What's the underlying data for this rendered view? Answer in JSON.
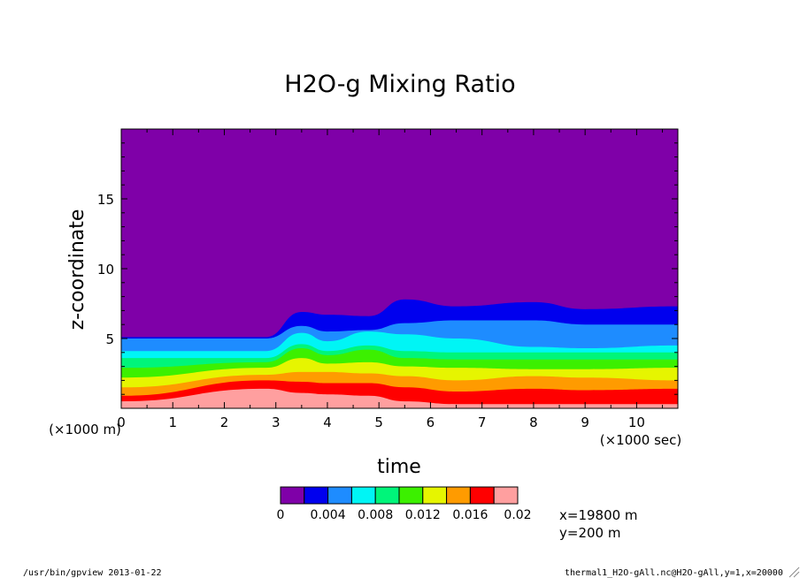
{
  "chart_data": {
    "type": "heatmap",
    "title": "H2O-g Mixing Ratio",
    "xlabel": "time",
    "ylabel": "z-coordinate",
    "x_scale_note": "(×1000 sec)",
    "y_scale_note": "(×1000 m)",
    "x_ticks": [
      0,
      1,
      2,
      3,
      4,
      5,
      6,
      7,
      8,
      9,
      10
    ],
    "y_ticks": [
      5,
      10,
      15
    ],
    "xlim": [
      0,
      10.8
    ],
    "ylim": [
      0,
      20
    ],
    "levels": [
      "0",
      "0.004",
      "0.008",
      "0.012",
      "0.016",
      "0.02"
    ],
    "colors": [
      "#7f00a8",
      "#0000ee",
      "#1e8cff",
      "#00f5f5",
      "#00f57a",
      "#3cf000",
      "#e6f500",
      "#ff9b00",
      "#ff0000",
      "#ff9f9f"
    ],
    "t_samples": [
      0,
      2.8,
      3.5,
      4,
      4.8,
      5.5,
      6.5,
      8,
      9,
      10.8
    ],
    "boundaries": [
      {
        "value": 0.002,
        "z": [
          5.1,
          5.1,
          6.9,
          6.7,
          6.6,
          7.8,
          7.3,
          7.6,
          7.1,
          7.3
        ]
      },
      {
        "value": 0.004,
        "z": [
          5.0,
          5.0,
          5.9,
          5.5,
          5.6,
          6.1,
          6.3,
          6.3,
          6.0,
          6.0
        ]
      },
      {
        "value": 0.006,
        "z": [
          4.1,
          4.1,
          5.4,
          4.8,
          5.5,
          5.3,
          5.0,
          4.4,
          4.3,
          4.5
        ]
      },
      {
        "value": 0.008,
        "z": [
          3.6,
          3.6,
          4.6,
          4.1,
          4.5,
          4.1,
          4.0,
          4.0,
          4.0,
          4.0
        ]
      },
      {
        "value": 0.01,
        "z": [
          2.9,
          3.3,
          4.3,
          3.8,
          4.2,
          3.6,
          3.5,
          3.5,
          3.5,
          3.5
        ]
      },
      {
        "value": 0.012,
        "z": [
          2.2,
          2.9,
          3.6,
          3.2,
          3.3,
          3.0,
          2.9,
          2.8,
          2.8,
          2.9
        ]
      },
      {
        "value": 0.014,
        "z": [
          1.5,
          2.4,
          2.6,
          2.6,
          2.5,
          2.3,
          2.0,
          2.3,
          2.2,
          2.0
        ]
      },
      {
        "value": 0.016,
        "z": [
          0.9,
          2.0,
          1.9,
          1.8,
          1.8,
          1.5,
          1.2,
          1.4,
          1.3,
          1.4
        ]
      },
      {
        "value": 0.018,
        "z": [
          0.5,
          1.4,
          1.1,
          1.0,
          0.9,
          0.5,
          0.3,
          0.3,
          0.3,
          0.3
        ]
      }
    ]
  },
  "info": {
    "x_loc": "x=19800 m",
    "y_loc": "y=200 m",
    "footer_left": "/usr/bin/gpview  2013-01-22",
    "footer_right": "thermal1_H2O-gAll.nc@H2O-gAll,y=1,x=20000"
  }
}
